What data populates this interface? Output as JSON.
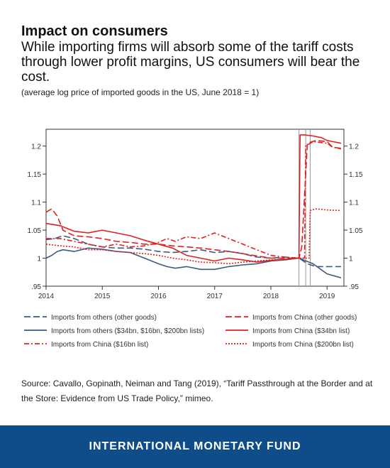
{
  "header": {
    "title": "Impact on consumers",
    "subtitle": "While importing firms will absorb some of the tariff costs through lower profit margins, US consumers will bear the cost.",
    "note": "(average log price of imported goods in the US, June 2018 = 1)"
  },
  "source": "Source: Cavallo, Gopinath, Neiman and Tang (2019), “Tariff Passthrough at the Border and at the Store: Evidence from US Trade Policy,” mimeo.",
  "footer": {
    "org_name": "INTERNATIONAL MONETARY FUND"
  },
  "chart_data": {
    "type": "line",
    "title": "",
    "xlabel": "",
    "ylabel": "",
    "xlim": [
      2014,
      2019.3
    ],
    "ylim": [
      0.95,
      1.23
    ],
    "x_ticks": [
      "2014",
      "2015",
      "2016",
      "2017",
      "2018",
      "2019"
    ],
    "y_ticks": [
      ".95",
      "1",
      "1.05",
      "1.1",
      "1.15",
      "1.2"
    ],
    "y_tick_values": [
      0.95,
      1.0,
      1.05,
      1.1,
      1.15,
      1.2
    ],
    "right_axis": true,
    "grid": false,
    "legend_position": "bottom",
    "tariff_dates": [
      2018.5,
      2018.62,
      2018.7
    ],
    "series": [
      {
        "name": "Imports from others (other goods)",
        "color": "#3d5a80",
        "dash": "long-dash",
        "x": [
          2014,
          2014.15,
          2014.3,
          2014.5,
          2014.75,
          2015,
          2015.25,
          2015.5,
          2015.75,
          2016,
          2016.25,
          2016.5,
          2016.75,
          2017,
          2017.25,
          2017.5,
          2017.75,
          2018,
          2018.25,
          2018.5,
          2018.65,
          2018.8,
          2019,
          2019.25
        ],
        "y": [
          1.033,
          1.035,
          1.04,
          1.035,
          1.025,
          1.02,
          1.018,
          1.018,
          1.016,
          1.012,
          1.01,
          1.012,
          1.015,
          1.01,
          1.012,
          1.008,
          1.002,
          1.0,
          1.002,
          1.0,
          0.99,
          0.985,
          0.985,
          0.985
        ]
      },
      {
        "name": "Imports from China (other goods)",
        "color": "#e02020",
        "dash": "long-dash",
        "x": [
          2014,
          2014.1,
          2014.2,
          2014.3,
          2014.5,
          2014.75,
          2015,
          2015.25,
          2015.5,
          2015.75,
          2016,
          2016.25,
          2016.5,
          2016.75,
          2017,
          2017.25,
          2017.5,
          2017.75,
          2018,
          2018.25,
          2018.45,
          2018.5,
          2018.55,
          2018.65,
          2018.8,
          2019,
          2019.1,
          2019.25
        ],
        "y": [
          1.082,
          1.088,
          1.075,
          1.05,
          1.04,
          1.038,
          1.035,
          1.03,
          1.028,
          1.025,
          1.025,
          1.022,
          1.02,
          1.018,
          1.015,
          1.012,
          1.008,
          1.004,
          1.0,
          1.0,
          1.0,
          1.0,
          1.02,
          1.205,
          1.21,
          1.208,
          1.198,
          1.196
        ]
      },
      {
        "name": "Imports from others ($34bn, $16bn, $200bn lists)",
        "color": "#3d5a80",
        "dash": "solid",
        "x": [
          2014,
          2014.1,
          2014.2,
          2014.3,
          2014.5,
          2014.75,
          2015,
          2015.25,
          2015.5,
          2015.75,
          2016,
          2016.15,
          2016.3,
          2016.5,
          2016.75,
          2017,
          2017.25,
          2017.5,
          2017.75,
          2018,
          2018.25,
          2018.5,
          2018.75,
          2019,
          2019.25
        ],
        "y": [
          1.0,
          1.005,
          1.012,
          1.015,
          1.012,
          1.018,
          1.016,
          1.012,
          1.01,
          1.0,
          0.99,
          0.985,
          0.982,
          0.985,
          0.98,
          0.98,
          0.985,
          0.988,
          0.99,
          0.995,
          0.997,
          1.0,
          0.99,
          0.972,
          0.965
        ]
      },
      {
        "name": "Imports from China ($34bn list)",
        "color": "#e02020",
        "dash": "solid",
        "x": [
          2014,
          2014.25,
          2014.5,
          2014.75,
          2015,
          2015.25,
          2015.5,
          2015.75,
          2016,
          2016.25,
          2016.5,
          2016.75,
          2017,
          2017.25,
          2017.5,
          2017.75,
          2018,
          2018.25,
          2018.45,
          2018.5,
          2018.52,
          2018.6,
          2018.75,
          2018.9,
          2019,
          2019.1,
          2019.25
        ],
        "y": [
          1.062,
          1.058,
          1.048,
          1.045,
          1.05,
          1.045,
          1.04,
          1.032,
          1.025,
          1.018,
          1.005,
          1.0,
          0.995,
          1.0,
          0.997,
          0.993,
          0.996,
          0.998,
          1.0,
          1.0,
          1.22,
          1.22,
          1.218,
          1.215,
          1.21,
          1.208,
          1.205
        ]
      },
      {
        "name": "Imports from China ($16bn list)",
        "color": "#e02020",
        "dash": "dash-dot",
        "x": [
          2014,
          2014.25,
          2014.5,
          2014.75,
          2015,
          2015.25,
          2015.5,
          2015.75,
          2016,
          2016.15,
          2016.3,
          2016.5,
          2016.75,
          2017,
          2017.25,
          2017.5,
          2017.75,
          2018,
          2018.25,
          2018.5,
          2018.6,
          2018.62,
          2018.75,
          2019,
          2019.1,
          2019.25
        ],
        "y": [
          1.035,
          1.035,
          1.03,
          1.025,
          1.02,
          1.025,
          1.02,
          1.022,
          1.028,
          1.035,
          1.03,
          1.038,
          1.035,
          1.045,
          1.035,
          1.025,
          1.015,
          1.005,
          1.002,
          1.0,
          1.0,
          1.2,
          1.208,
          1.205,
          1.198,
          1.195
        ]
      },
      {
        "name": "Imports from China ($200bn list)",
        "color": "#e02020",
        "dash": "dotted",
        "x": [
          2014,
          2014.25,
          2014.5,
          2014.75,
          2015,
          2015.25,
          2015.5,
          2015.75,
          2016,
          2016.25,
          2016.5,
          2016.75,
          2017,
          2017.25,
          2017.5,
          2017.75,
          2018,
          2018.25,
          2018.5,
          2018.68,
          2018.7,
          2018.8,
          2019,
          2019.25
        ],
        "y": [
          1.025,
          1.022,
          1.02,
          1.015,
          1.015,
          1.012,
          1.01,
          1.008,
          1.005,
          1.0,
          0.997,
          0.993,
          0.992,
          0.99,
          0.993,
          0.995,
          0.997,
          0.998,
          1.0,
          1.0,
          1.085,
          1.088,
          1.086,
          1.085
        ]
      }
    ]
  }
}
